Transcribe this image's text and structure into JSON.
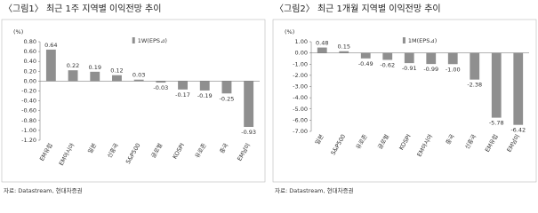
{
  "chart_data": [
    {
      "type": "bar",
      "title": "〈그림1〉 최근 1주 지역별 이익전망 추이",
      "unit": "(%)",
      "source": "자료: Datastream, 현대차증권",
      "categories": [
        "EM유럽",
        "EM아시아",
        "일본",
        "신흥국",
        "S&P500",
        "글로벌",
        "KOSPI",
        "유로존",
        "중국",
        "EM남미"
      ],
      "series": [
        {
          "name": "1W(EPS⊿)",
          "color": "#8f8f8f",
          "values": [
            0.64,
            0.22,
            0.19,
            0.12,
            0.03,
            -0.03,
            -0.17,
            -0.19,
            -0.25,
            -0.93
          ]
        }
      ],
      "ylim": [
        -1.2,
        0.8
      ],
      "yticks": [
        {
          "value": 0.8,
          "label": "0.80"
        },
        {
          "value": 0.6,
          "label": "0.60"
        },
        {
          "value": 0.4,
          "label": "0.40"
        },
        {
          "value": 0.2,
          "label": "0.20"
        },
        {
          "value": 0,
          "label": "0.00"
        },
        {
          "value": -0.2,
          "label": "-0.20"
        },
        {
          "value": -0.4,
          "label": "-0.40"
        },
        {
          "value": -0.6,
          "label": "-0.60"
        },
        {
          "value": -0.8,
          "label": "-0.80"
        },
        {
          "value": -1.0,
          "label": "-1.00"
        },
        {
          "value": -1.2,
          "label": "-1.20"
        }
      ]
    },
    {
      "type": "bar",
      "title": "〈그림2〉 최근 1개월 지역별 이익전망 추이",
      "unit": "(%)",
      "source": "자료: Datastream, 현대차증권",
      "categories": [
        "일본",
        "S&P500",
        "유로존",
        "글로벌",
        "KOSPI",
        "EM아시아",
        "중국",
        "신흥국",
        "EM유럽",
        "EM남미"
      ],
      "series": [
        {
          "name": "1M(EPS⊿)",
          "color": "#8f8f8f",
          "values": [
            0.48,
            0.15,
            -0.49,
            -0.62,
            -0.91,
            -0.99,
            -1.0,
            -2.38,
            -5.78,
            -6.42
          ],
          "value_labels": [
            "0.48",
            "0.15",
            "-0.49",
            "-0.62",
            "-0.91",
            "-0.99",
            "-1.00",
            "-2.38",
            "-5.78",
            "-6.42"
          ]
        }
      ],
      "ylim": [
        -7,
        1
      ],
      "yticks": [
        {
          "value": 1,
          "label": "1.00"
        },
        {
          "value": 0,
          "label": "0.00"
        },
        {
          "value": -1,
          "label": "-1.00"
        },
        {
          "value": -2,
          "label": "-2.00"
        },
        {
          "value": -3,
          "label": "-3.00"
        },
        {
          "value": -4,
          "label": "-4.00"
        },
        {
          "value": -5,
          "label": "-5.00"
        },
        {
          "value": -6,
          "label": "-6.00"
        },
        {
          "value": -7,
          "label": "-7.00"
        }
      ]
    }
  ]
}
